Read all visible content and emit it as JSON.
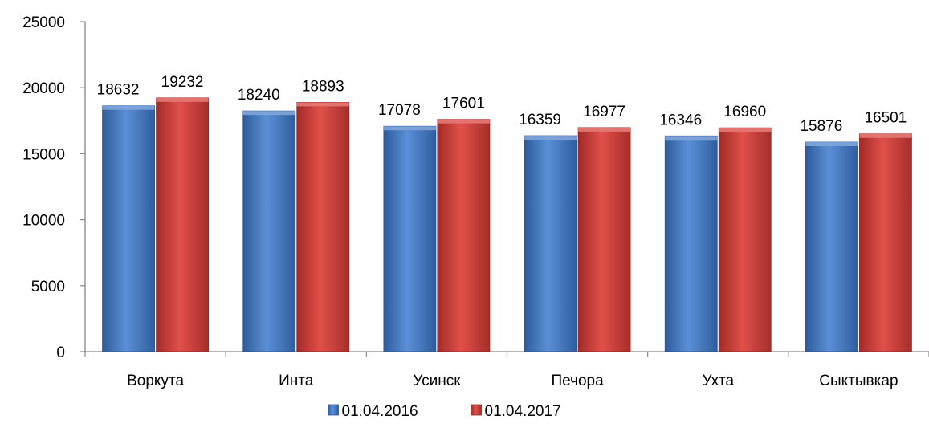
{
  "chart_data": {
    "type": "bar",
    "categories": [
      "Воркута",
      "Инта",
      "Усинск",
      "Печора",
      "Ухта",
      "Сыктывкар"
    ],
    "series": [
      {
        "name": "01.04.2016",
        "values": [
          18632,
          18240,
          17078,
          16359,
          16346,
          15876
        ],
        "color": "#4F81BD"
      },
      {
        "name": "01.04.2017",
        "values": [
          19232,
          18893,
          17601,
          16977,
          16960,
          16501
        ],
        "color": "#C0504D"
      }
    ],
    "y_ticks": [
      "0",
      "5000",
      "10000",
      "15000",
      "20000",
      "25000"
    ],
    "ylim": [
      0,
      25000
    ],
    "grid": false,
    "legend_position": "bottom",
    "data_labels": true
  }
}
